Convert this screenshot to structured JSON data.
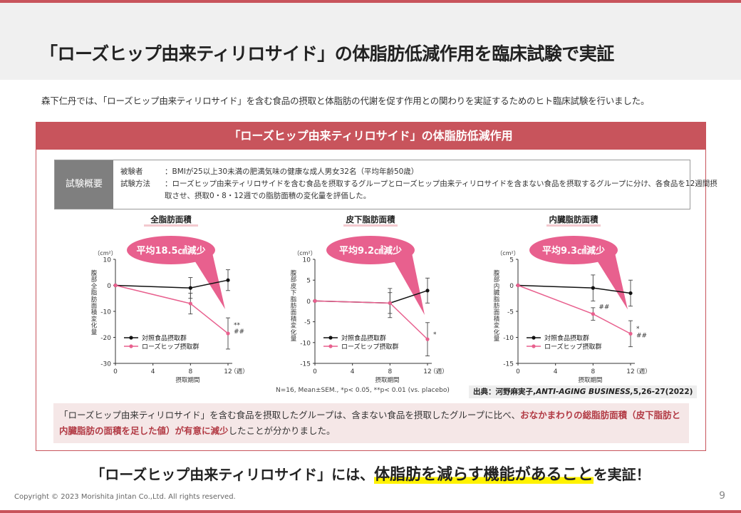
{
  "title": "「ローズヒップ由来ティリロサイド」の体脂肪低減作用を臨床試験で実証",
  "intro": "森下仁丹では、「ローズヒップ由来ティリロサイド」を含む食品の摂取と体脂肪の代謝を促す作用との関わりを実証するためのヒト臨床試験を行いました。",
  "panel_title": "「ローズヒップ由来ティリロサイド」の体脂肪低減作用",
  "overview": {
    "label": "試験概要",
    "subjects_key": "被験者",
    "subjects": "：BMIが25以上30未満の肥満気味の健康な成人男女32名（平均年齢50歳）",
    "method_key": "試験方法",
    "method_1": "：ローズヒップ由来ティリロサイドを含む食品を摂取するグループとローズヒップ由来ティリロサイドを含まない食品を摂取するグループに分け、各食品を12週間摂",
    "method_2": "取させ、摂取0・8・12週での脂肪面積の変化量を評価した。"
  },
  "colors": {
    "accent": "#c8545c",
    "control": "#111111",
    "rosehip": "#e8608e",
    "bubble": "#e8608e"
  },
  "chart_data": [
    {
      "type": "line",
      "title": "全脂肪面積",
      "callout": "平均18.5㎠減少",
      "ylabel": "腹部全脂肪面積変化量",
      "unit": "（cm²）",
      "xlabel": "摂取期間",
      "x_unit": "（週）",
      "x_ticks": [
        0,
        4,
        8,
        12
      ],
      "ylim": [
        -30,
        10
      ],
      "y_ticks": [
        10,
        0,
        -10,
        -20,
        -30
      ],
      "x": [
        0,
        8,
        12
      ],
      "series": [
        {
          "name": "対照食品摂取群",
          "values": [
            0,
            -1,
            2
          ],
          "err": [
            0,
            4,
            4
          ]
        },
        {
          "name": "ローズヒップ摂取群",
          "values": [
            0,
            -7,
            -18.5
          ],
          "err": [
            0,
            4,
            6
          ]
        }
      ],
      "marks": [
        {
          "text": "**",
          "x": 12,
          "y": -16
        },
        {
          "text": "##",
          "x": 12,
          "y": -18.5
        }
      ]
    },
    {
      "type": "line",
      "title": "皮下脂肪面積",
      "callout": "平均9.2㎠減少",
      "ylabel": "腹部皮下脂肪面積変化量",
      "unit": "（cm²）",
      "xlabel": "摂取期間",
      "x_unit": "（週）",
      "x_ticks": [
        0,
        4,
        8,
        12
      ],
      "ylim": [
        -15,
        10
      ],
      "y_ticks": [
        10,
        5,
        0,
        -5,
        -10,
        -15
      ],
      "x": [
        0,
        8,
        12
      ],
      "series": [
        {
          "name": "対照食品摂取群",
          "values": [
            0,
            -0.5,
            2.5
          ],
          "err": [
            0,
            3.5,
            3
          ]
        },
        {
          "name": "ローズヒップ摂取群",
          "values": [
            0,
            -0.5,
            -9.2
          ],
          "err": [
            0,
            2.5,
            4
          ]
        }
      ],
      "marks": [
        {
          "text": "*",
          "x": 12,
          "y": -8.5
        }
      ]
    },
    {
      "type": "line",
      "title": "内臓脂肪面積",
      "callout": "平均9.3㎠減少",
      "ylabel": "腹部内臓脂肪面積変化量",
      "unit": "（cm²）",
      "xlabel": "摂取期間",
      "x_unit": "（週）",
      "x_ticks": [
        0,
        4,
        8,
        12
      ],
      "ylim": [
        -15,
        5
      ],
      "y_ticks": [
        5,
        0,
        -5,
        -10,
        -15
      ],
      "x": [
        0,
        8,
        12
      ],
      "series": [
        {
          "name": "対照食品摂取群",
          "values": [
            0,
            -0.5,
            -1.5
          ],
          "err": [
            0,
            2.5,
            2.5
          ]
        },
        {
          "name": "ローズヒップ摂取群",
          "values": [
            0,
            -5.5,
            -9.3
          ],
          "err": [
            0,
            1.2,
            2.5
          ]
        }
      ],
      "marks": [
        {
          "text": "##",
          "x": 8,
          "y": -4.5
        },
        {
          "text": "*",
          "x": 12,
          "y": -8.7
        },
        {
          "text": "##",
          "x": 12,
          "y": -10
        }
      ]
    }
  ],
  "footnote": "N=16, Mean±SEM., *p< 0.05, **p< 0.01 (vs. placebo)",
  "source_prefix": "出典：河野麻実子,",
  "source_journal": "ANTI-AGING BUSINESS,",
  "source_suffix": "5,26-27(2022)",
  "summary_1": "「ローズヒップ由来ティリロサイド」を含む食品を摂取したグループは、含まない食品を摂取したグループに比べ、",
  "summary_em": "おなかまわりの総脂肪面積（皮下脂肪と内臓脂肪の面積を足した値）が有意に減少",
  "summary_2": "したことが分かりました。",
  "bottom_1": "「ローズヒップ由来ティリロサイド」には、",
  "bottom_big": "体脂肪を減らす機能があること",
  "bottom_2": "を実証！",
  "copyright": "Copyright © 2023 Morishita Jintan Co.,Ltd. All rights reserved.",
  "page_number": "9"
}
